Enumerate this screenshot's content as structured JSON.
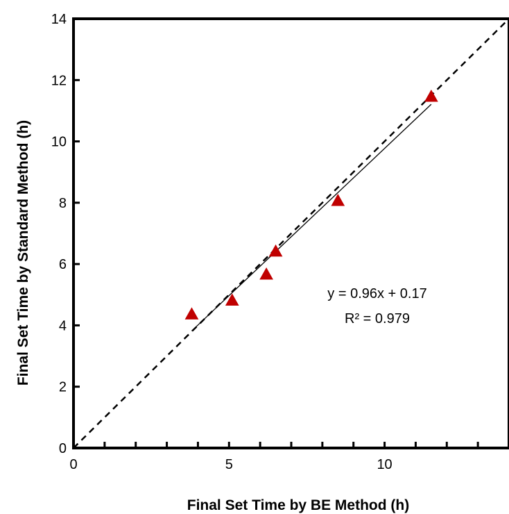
{
  "chart_data": {
    "type": "scatter",
    "xlabel": "Final Set Time by BE Method (h)",
    "ylabel": "Final Set Time by Standard Method (h)",
    "xlim": [
      0,
      14
    ],
    "ylim": [
      0,
      14
    ],
    "x_ticks": [
      0,
      5,
      10
    ],
    "x_tick_labels": [
      "0",
      "5",
      "10"
    ],
    "x_minor_step": 1,
    "y_ticks": [
      0,
      2,
      4,
      6,
      8,
      10,
      12,
      14
    ],
    "y_tick_labels": [
      "0",
      "2",
      "4",
      "6",
      "8",
      "10",
      "12",
      "14"
    ],
    "grid": false,
    "series": [
      {
        "marker": "triangle",
        "color": "#c00000",
        "points": [
          {
            "x": 3.8,
            "y": 4.35
          },
          {
            "x": 5.1,
            "y": 4.8
          },
          {
            "x": 6.2,
            "y": 5.65
          },
          {
            "x": 6.5,
            "y": 6.4
          },
          {
            "x": 8.5,
            "y": 8.05
          },
          {
            "x": 11.5,
            "y": 11.45
          }
        ]
      }
    ],
    "trendline": {
      "slope": 0.96,
      "intercept": 0.17,
      "x_range": [
        3.8,
        11.5
      ],
      "color": "#000000"
    },
    "reference_line": {
      "label": "1:1",
      "style": "dashed",
      "slope": 1,
      "intercept": 0,
      "x_range": [
        0,
        14
      ]
    },
    "annotations": {
      "equation": "y = 0.96x + 0.17",
      "r_squared": "R² = 0.979"
    }
  }
}
